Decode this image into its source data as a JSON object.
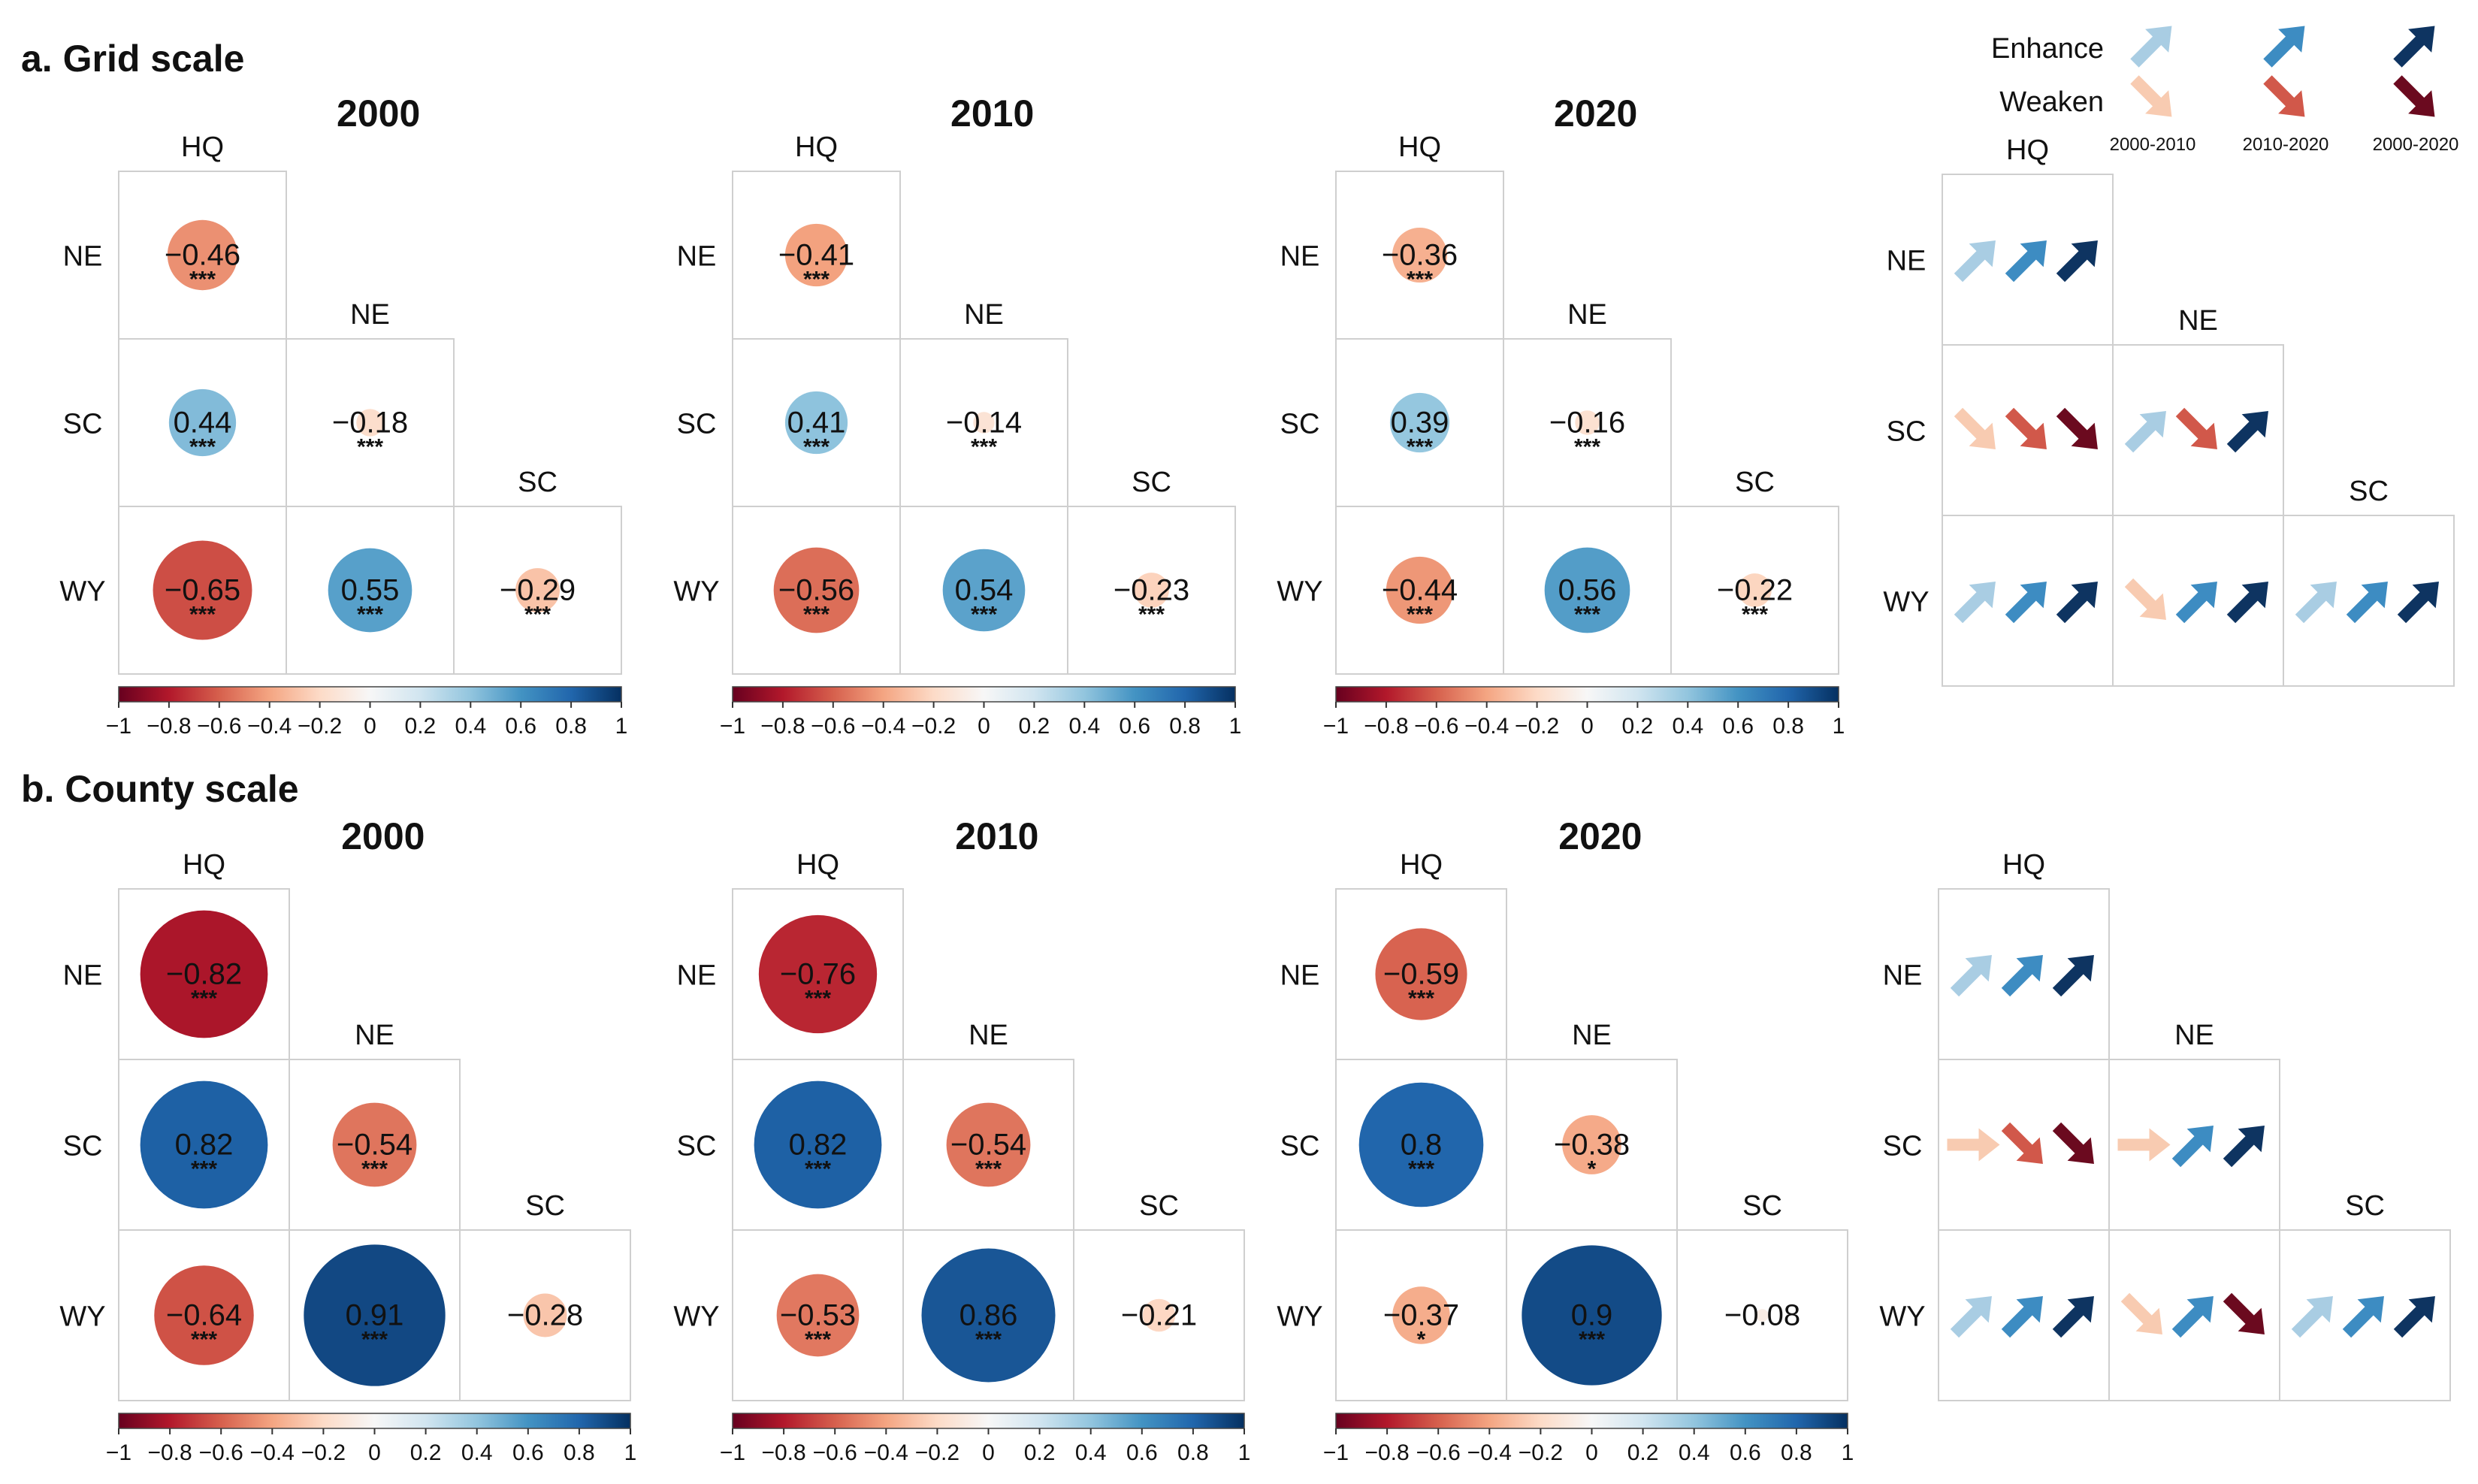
{
  "colors": {
    "neg_strong": "#67001f",
    "neg_mid": "#d6604d",
    "neg_light": "#fddbc7",
    "neutral": "#f7f7f7",
    "pos_light": "#d1e5f0",
    "pos_mid": "#4393c3",
    "pos_strong": "#053061",
    "trend_light_blue": "#a9cde3",
    "trend_mid_blue": "#3d8cc2",
    "trend_dark_blue": "#0e3461",
    "trend_light_red": "#f8cbb1",
    "trend_mid_red": "#d1584a",
    "trend_dark_red": "#6b0a1f"
  },
  "legend": {
    "enhance_label": "Enhance",
    "weaken_label": "Weaken",
    "periods": [
      "2000-2010",
      "2010-2020",
      "2000-2020"
    ]
  },
  "colorbar_ticks": [
    "−1",
    "−0.8",
    "−0.6",
    "−0.4",
    "−0.2",
    "0",
    "0.2",
    "0.4",
    "0.6",
    "0.8",
    "1"
  ],
  "chart_data": [
    {
      "type": "correlation-matrix",
      "title": "2000",
      "panel_title": "a. Grid scale",
      "col_labels": [
        "HQ",
        "NE",
        "SC"
      ],
      "row_labels": [
        "NE",
        "SC",
        "WY"
      ],
      "cells": [
        {
          "row": "NE",
          "col": "HQ",
          "r": -0.46,
          "label": "−0.46",
          "sig": "***"
        },
        {
          "row": "SC",
          "col": "HQ",
          "r": 0.44,
          "label": "0.44",
          "sig": "***"
        },
        {
          "row": "SC",
          "col": "NE",
          "r": -0.18,
          "label": "−0.18",
          "sig": "***"
        },
        {
          "row": "WY",
          "col": "HQ",
          "r": -0.65,
          "label": "−0.65",
          "sig": "***"
        },
        {
          "row": "WY",
          "col": "NE",
          "r": 0.55,
          "label": "0.55",
          "sig": "***"
        },
        {
          "row": "WY",
          "col": "SC",
          "r": -0.29,
          "label": "−0.29",
          "sig": "***"
        }
      ],
      "color_range": [
        -1,
        1
      ]
    },
    {
      "type": "correlation-matrix",
      "title": "2010",
      "col_labels": [
        "HQ",
        "NE",
        "SC"
      ],
      "row_labels": [
        "NE",
        "SC",
        "WY"
      ],
      "cells": [
        {
          "row": "NE",
          "col": "HQ",
          "r": -0.41,
          "label": "−0.41",
          "sig": "***"
        },
        {
          "row": "SC",
          "col": "HQ",
          "r": 0.41,
          "label": "0.41",
          "sig": "***"
        },
        {
          "row": "SC",
          "col": "NE",
          "r": -0.14,
          "label": "−0.14",
          "sig": "***"
        },
        {
          "row": "WY",
          "col": "HQ",
          "r": -0.56,
          "label": "−0.56",
          "sig": "***"
        },
        {
          "row": "WY",
          "col": "NE",
          "r": 0.54,
          "label": "0.54",
          "sig": "***"
        },
        {
          "row": "WY",
          "col": "SC",
          "r": -0.23,
          "label": "−0.23",
          "sig": "***"
        }
      ],
      "color_range": [
        -1,
        1
      ]
    },
    {
      "type": "correlation-matrix",
      "title": "2020",
      "col_labels": [
        "HQ",
        "NE",
        "SC"
      ],
      "row_labels": [
        "NE",
        "SC",
        "WY"
      ],
      "cells": [
        {
          "row": "NE",
          "col": "HQ",
          "r": -0.36,
          "label": "−0.36",
          "sig": "***"
        },
        {
          "row": "SC",
          "col": "HQ",
          "r": 0.39,
          "label": "0.39",
          "sig": "***"
        },
        {
          "row": "SC",
          "col": "NE",
          "r": -0.16,
          "label": "−0.16",
          "sig": "***"
        },
        {
          "row": "WY",
          "col": "HQ",
          "r": -0.44,
          "label": "−0.44",
          "sig": "***"
        },
        {
          "row": "WY",
          "col": "NE",
          "r": 0.56,
          "label": "0.56",
          "sig": "***"
        },
        {
          "row": "WY",
          "col": "SC",
          "r": -0.22,
          "label": "−0.22",
          "sig": "***"
        }
      ],
      "color_range": [
        -1,
        1
      ]
    },
    {
      "type": "trend-matrix",
      "title": "",
      "col_labels": [
        "HQ",
        "NE",
        "SC"
      ],
      "row_labels": [
        "NE",
        "SC",
        "WY"
      ],
      "cells": [
        {
          "row": "NE",
          "col": "HQ",
          "trends": [
            "enhance",
            "enhance",
            "enhance"
          ]
        },
        {
          "row": "SC",
          "col": "HQ",
          "trends": [
            "weaken",
            "weaken",
            "weaken"
          ]
        },
        {
          "row": "SC",
          "col": "NE",
          "trends": [
            "enhance",
            "weaken",
            "enhance"
          ]
        },
        {
          "row": "WY",
          "col": "HQ",
          "trends": [
            "enhance",
            "enhance",
            "enhance"
          ]
        },
        {
          "row": "WY",
          "col": "NE",
          "trends": [
            "weaken",
            "enhance",
            "enhance"
          ]
        },
        {
          "row": "WY",
          "col": "SC",
          "trends": [
            "enhance",
            "enhance",
            "enhance"
          ]
        }
      ]
    },
    {
      "type": "correlation-matrix",
      "title": "2000",
      "panel_title": "b. County scale",
      "col_labels": [
        "HQ",
        "NE",
        "SC"
      ],
      "row_labels": [
        "NE",
        "SC",
        "WY"
      ],
      "cells": [
        {
          "row": "NE",
          "col": "HQ",
          "r": -0.82,
          "label": "−0.82",
          "sig": "***"
        },
        {
          "row": "SC",
          "col": "HQ",
          "r": 0.82,
          "label": "0.82",
          "sig": "***"
        },
        {
          "row": "SC",
          "col": "NE",
          "r": -0.54,
          "label": "−0.54",
          "sig": "***"
        },
        {
          "row": "WY",
          "col": "HQ",
          "r": -0.64,
          "label": "−0.64",
          "sig": "***"
        },
        {
          "row": "WY",
          "col": "NE",
          "r": 0.91,
          "label": "0.91",
          "sig": "***"
        },
        {
          "row": "WY",
          "col": "SC",
          "r": -0.28,
          "label": "−0.28",
          "sig": ""
        }
      ],
      "color_range": [
        -1,
        1
      ]
    },
    {
      "type": "correlation-matrix",
      "title": "2010",
      "col_labels": [
        "HQ",
        "NE",
        "SC"
      ],
      "row_labels": [
        "NE",
        "SC",
        "WY"
      ],
      "cells": [
        {
          "row": "NE",
          "col": "HQ",
          "r": -0.76,
          "label": "−0.76",
          "sig": "***"
        },
        {
          "row": "SC",
          "col": "HQ",
          "r": 0.82,
          "label": "0.82",
          "sig": "***"
        },
        {
          "row": "SC",
          "col": "NE",
          "r": -0.54,
          "label": "−0.54",
          "sig": "***"
        },
        {
          "row": "WY",
          "col": "HQ",
          "r": -0.53,
          "label": "−0.53",
          "sig": "***"
        },
        {
          "row": "WY",
          "col": "NE",
          "r": 0.86,
          "label": "0.86",
          "sig": "***"
        },
        {
          "row": "WY",
          "col": "SC",
          "r": -0.21,
          "label": "−0.21",
          "sig": ""
        }
      ],
      "color_range": [
        -1,
        1
      ]
    },
    {
      "type": "correlation-matrix",
      "title": "2020",
      "col_labels": [
        "HQ",
        "NE",
        "SC"
      ],
      "row_labels": [
        "NE",
        "SC",
        "WY"
      ],
      "cells": [
        {
          "row": "NE",
          "col": "HQ",
          "r": -0.59,
          "label": "−0.59",
          "sig": "***"
        },
        {
          "row": "SC",
          "col": "HQ",
          "r": 0.8,
          "label": "0.8",
          "sig": "***"
        },
        {
          "row": "SC",
          "col": "NE",
          "r": -0.38,
          "label": "−0.38",
          "sig": "*"
        },
        {
          "row": "WY",
          "col": "HQ",
          "r": -0.37,
          "label": "−0.37",
          "sig": "*"
        },
        {
          "row": "WY",
          "col": "NE",
          "r": 0.9,
          "label": "0.9",
          "sig": "***"
        },
        {
          "row": "WY",
          "col": "SC",
          "r": -0.08,
          "label": "−0.08",
          "sig": ""
        }
      ],
      "color_range": [
        -1,
        1
      ]
    },
    {
      "type": "trend-matrix",
      "title": "",
      "col_labels": [
        "HQ",
        "NE",
        "SC"
      ],
      "row_labels": [
        "NE",
        "SC",
        "WY"
      ],
      "cells": [
        {
          "row": "NE",
          "col": "HQ",
          "trends": [
            "enhance",
            "enhance",
            "enhance"
          ]
        },
        {
          "row": "SC",
          "col": "HQ",
          "trends": [
            "neutral",
            "weaken",
            "weaken"
          ]
        },
        {
          "row": "SC",
          "col": "NE",
          "trends": [
            "neutral",
            "enhance",
            "enhance"
          ]
        },
        {
          "row": "WY",
          "col": "HQ",
          "trends": [
            "enhance",
            "enhance",
            "enhance"
          ]
        },
        {
          "row": "WY",
          "col": "NE",
          "trends": [
            "weaken",
            "enhance",
            "weaken"
          ]
        },
        {
          "row": "WY",
          "col": "SC",
          "trends": [
            "enhance",
            "enhance",
            "enhance"
          ]
        }
      ]
    }
  ]
}
